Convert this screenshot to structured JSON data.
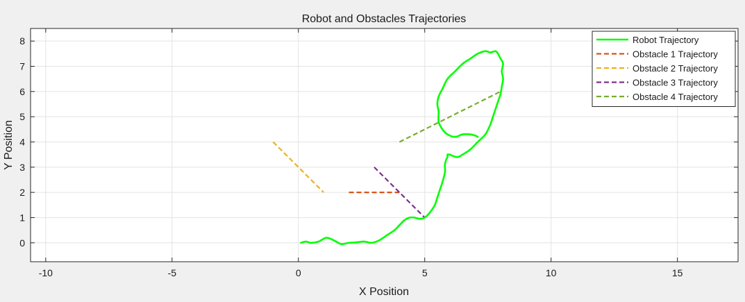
{
  "chart_data": {
    "type": "line",
    "title": "Robot and Obstacles Trajectories",
    "xlabel": "X Position",
    "ylabel": "Y Position",
    "xlim": [
      -10.6,
      17.4
    ],
    "ylim": [
      -0.75,
      8.5
    ],
    "xticks": [
      -10,
      -5,
      0,
      5,
      10,
      15
    ],
    "yticks": [
      0,
      1,
      2,
      3,
      4,
      5,
      6,
      7,
      8
    ],
    "grid": true,
    "legend_position": "top-right",
    "series": [
      {
        "name": "Robot Trajectory",
        "color": "#00ff00",
        "style": "solid",
        "x": [
          0.1,
          0.3,
          0.5,
          0.8,
          1.1,
          1.4,
          1.7,
          2.0,
          2.3,
          2.6,
          2.9,
          3.2,
          3.5,
          3.8,
          4.0,
          4.2,
          4.4,
          4.6,
          4.8,
          5.0,
          5.2,
          5.4,
          5.5,
          5.6,
          5.7,
          5.8,
          5.8,
          5.85,
          5.9,
          5.9,
          5.95,
          6.0,
          6.1,
          6.3,
          6.5,
          6.8,
          7.1,
          7.4,
          7.6,
          7.7,
          7.8,
          7.9,
          8.0,
          8.05,
          8.1,
          8.05,
          8.1,
          8.0,
          7.9,
          7.8,
          7.6,
          7.4,
          7.1,
          6.8,
          6.5,
          6.2,
          5.9,
          5.7,
          5.55,
          5.5,
          5.55,
          5.55,
          5.7,
          5.9,
          6.2,
          6.5,
          6.8,
          7.0,
          7.1
        ],
        "y": [
          0.0,
          0.05,
          0.0,
          0.05,
          0.2,
          0.1,
          -0.05,
          0.0,
          0.02,
          0.05,
          0.0,
          0.1,
          0.3,
          0.5,
          0.7,
          0.9,
          1.0,
          1.0,
          0.95,
          1.0,
          1.2,
          1.5,
          1.8,
          2.1,
          2.4,
          2.8,
          3.1,
          3.3,
          3.4,
          3.5,
          3.5,
          3.5,
          3.45,
          3.4,
          3.5,
          3.7,
          4.0,
          4.3,
          4.7,
          5.0,
          5.3,
          5.6,
          5.9,
          6.2,
          6.5,
          6.8,
          7.1,
          7.3,
          7.5,
          7.6,
          7.55,
          7.6,
          7.5,
          7.3,
          7.1,
          6.8,
          6.5,
          6.1,
          5.8,
          5.5,
          5.2,
          4.8,
          4.5,
          4.3,
          4.2,
          4.3,
          4.3,
          4.25,
          4.2
        ]
      },
      {
        "name": "Obstacle 1 Trajectory",
        "color": "#d95319",
        "style": "dashed",
        "x": [
          2,
          4
        ],
        "y": [
          2,
          2
        ]
      },
      {
        "name": "Obstacle 2 Trajectory",
        "color": "#edb120",
        "style": "dashed",
        "x": [
          -1,
          1
        ],
        "y": [
          4,
          2
        ]
      },
      {
        "name": "Obstacle 3 Trajectory",
        "color": "#7e2f8e",
        "style": "dashed",
        "x": [
          3,
          5
        ],
        "y": [
          3,
          1
        ]
      },
      {
        "name": "Obstacle 4 Trajectory",
        "color": "#77ac30",
        "style": "dashed",
        "x": [
          4,
          8
        ],
        "y": [
          4,
          6
        ]
      }
    ]
  }
}
